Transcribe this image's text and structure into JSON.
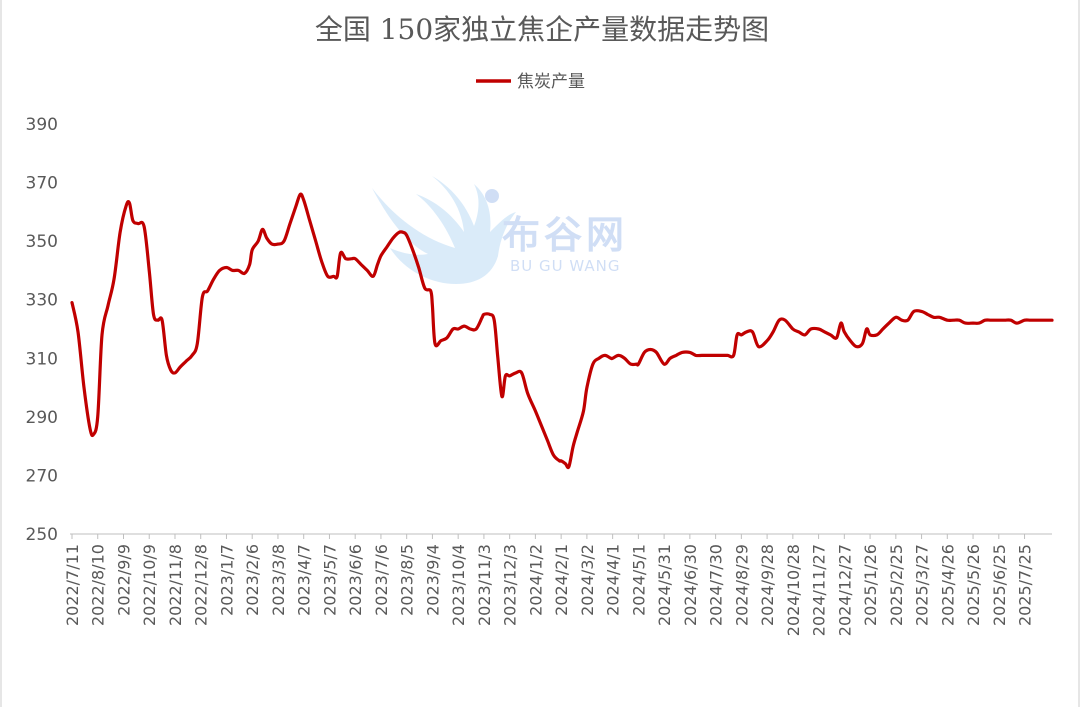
{
  "watermark": {
    "brand_cn": "布谷网",
    "brand_en": "BU GU WANG"
  },
  "chart_data": {
    "type": "line",
    "title": "全国 150家独立焦企产量数据走势图",
    "legend": {
      "position": "top-center"
    },
    "xlabel": "",
    "ylabel": "",
    "ylim": [
      250,
      390
    ],
    "yticks": [
      "250",
      "270",
      "290",
      "310",
      "330",
      "350",
      "370",
      "390"
    ],
    "grid": false,
    "xticks": [
      "2022/7/11",
      "2022/8/10",
      "2022/9/9",
      "2022/10/9",
      "2022/11/8",
      "2022/12/8",
      "2023/1/7",
      "2023/2/6",
      "2023/3/8",
      "2023/4/7",
      "2023/5/7",
      "2023/6/6",
      "2023/7/6",
      "2023/8/5",
      "2023/9/4",
      "2023/10/4",
      "2023/11/3",
      "2023/12/3",
      "2024/1/2",
      "2024/2/1",
      "2024/3/2",
      "2024/4/1",
      "2024/5/1",
      "2024/5/31",
      "2024/6/30",
      "2024/7/30",
      "2024/8/29",
      "2024/9/28",
      "2024/10/28",
      "2024/11/27",
      "2024/12/27",
      "2025/1/26",
      "2025/2/25",
      "2025/3/27",
      "2025/4/26",
      "2025/5/26",
      "2025/6/25",
      "2025/7/25"
    ],
    "x_end": "2025/8/26",
    "color": "#c00000",
    "series": [
      {
        "name": "焦炭产量",
        "points": [
          [
            "2022/7/11",
            329
          ],
          [
            "2022/7/18",
            319
          ],
          [
            "2022/7/25",
            300
          ],
          [
            "2022/8/1",
            286
          ],
          [
            "2022/8/5",
            284
          ],
          [
            "2022/8/10",
            290
          ],
          [
            "2022/8/15",
            318
          ],
          [
            "2022/8/22",
            328
          ],
          [
            "2022/8/29",
            337
          ],
          [
            "2022/9/5",
            353
          ],
          [
            "2022/9/12",
            362
          ],
          [
            "2022/9/16",
            363
          ],
          [
            "2022/9/20",
            357
          ],
          [
            "2022/9/26",
            356
          ],
          [
            "2022/10/3",
            355
          ],
          [
            "2022/10/9",
            340
          ],
          [
            "2022/10/14",
            325
          ],
          [
            "2022/10/19",
            323
          ],
          [
            "2022/10/24",
            323
          ],
          [
            "2022/10/29",
            311
          ],
          [
            "2022/11/3",
            306
          ],
          [
            "2022/11/8",
            305
          ],
          [
            "2022/11/14",
            307
          ],
          [
            "2022/11/21",
            309
          ],
          [
            "2022/11/28",
            311
          ],
          [
            "2022/12/4",
            315
          ],
          [
            "2022/12/10",
            331
          ],
          [
            "2022/12/16",
            333
          ],
          [
            "2022/12/23",
            337
          ],
          [
            "2022/12/30",
            340
          ],
          [
            "2023/1/7",
            341
          ],
          [
            "2023/1/14",
            340
          ],
          [
            "2023/1/21",
            340
          ],
          [
            "2023/1/28",
            339
          ],
          [
            "2023/2/3",
            342
          ],
          [
            "2023/2/6",
            347
          ],
          [
            "2023/2/13",
            350
          ],
          [
            "2023/2/18",
            354
          ],
          [
            "2023/2/23",
            351
          ],
          [
            "2023/3/1",
            349
          ],
          [
            "2023/3/8",
            349
          ],
          [
            "2023/3/15",
            350
          ],
          [
            "2023/3/22",
            356
          ],
          [
            "2023/3/29",
            362
          ],
          [
            "2023/4/3",
            366
          ],
          [
            "2023/4/7",
            364
          ],
          [
            "2023/4/14",
            357
          ],
          [
            "2023/4/21",
            350
          ],
          [
            "2023/4/28",
            343
          ],
          [
            "2023/5/5",
            338
          ],
          [
            "2023/5/12",
            338
          ],
          [
            "2023/5/16",
            338
          ],
          [
            "2023/5/20",
            346
          ],
          [
            "2023/5/26",
            344
          ],
          [
            "2023/6/2",
            344
          ],
          [
            "2023/6/6",
            344
          ],
          [
            "2023/6/13",
            342
          ],
          [
            "2023/6/20",
            340
          ],
          [
            "2023/6/27",
            338
          ],
          [
            "2023/7/2",
            342
          ],
          [
            "2023/7/6",
            345
          ],
          [
            "2023/7/13",
            348
          ],
          [
            "2023/7/20",
            351
          ],
          [
            "2023/7/27",
            353
          ],
          [
            "2023/8/1",
            353
          ],
          [
            "2023/8/5",
            352
          ],
          [
            "2023/8/12",
            347
          ],
          [
            "2023/8/19",
            341
          ],
          [
            "2023/8/26",
            334
          ],
          [
            "2023/9/2",
            333
          ],
          [
            "2023/9/4",
            328
          ],
          [
            "2023/9/7",
            315
          ],
          [
            "2023/9/14",
            316
          ],
          [
            "2023/9/21",
            317
          ],
          [
            "2023/9/28",
            320
          ],
          [
            "2023/10/4",
            320
          ],
          [
            "2023/10/11",
            321
          ],
          [
            "2023/10/18",
            320
          ],
          [
            "2023/10/25",
            320
          ],
          [
            "2023/11/1",
            324
          ],
          [
            "2023/11/3",
            325
          ],
          [
            "2023/11/10",
            325
          ],
          [
            "2023/11/15",
            323
          ],
          [
            "2023/11/19",
            311
          ],
          [
            "2023/11/24",
            297
          ],
          [
            "2023/11/28",
            304
          ],
          [
            "2023/12/3",
            304
          ],
          [
            "2023/12/10",
            305
          ],
          [
            "2023/12/17",
            305
          ],
          [
            "2023/12/24",
            298
          ],
          [
            "2024/1/2",
            292
          ],
          [
            "2024/1/9",
            287
          ],
          [
            "2024/1/16",
            282
          ],
          [
            "2024/1/23",
            277
          ],
          [
            "2024/1/30",
            275
          ],
          [
            "2024/2/1",
            275
          ],
          [
            "2024/2/6",
            274
          ],
          [
            "2024/2/10",
            273
          ],
          [
            "2024/2/15",
            280
          ],
          [
            "2024/2/20",
            285
          ],
          [
            "2024/2/27",
            292
          ],
          [
            "2024/3/2",
            300
          ],
          [
            "2024/3/9",
            308
          ],
          [
            "2024/3/16",
            310
          ],
          [
            "2024/3/23",
            311
          ],
          [
            "2024/3/30",
            310
          ],
          [
            "2024/4/1",
            310
          ],
          [
            "2024/4/8",
            311
          ],
          [
            "2024/4/15",
            310
          ],
          [
            "2024/4/22",
            308
          ],
          [
            "2024/4/29",
            308
          ],
          [
            "2024/5/1",
            308
          ],
          [
            "2024/5/8",
            312
          ],
          [
            "2024/5/15",
            313
          ],
          [
            "2024/5/22",
            312
          ],
          [
            "2024/5/31",
            308
          ],
          [
            "2024/6/7",
            310
          ],
          [
            "2024/6/14",
            311
          ],
          [
            "2024/6/21",
            312
          ],
          [
            "2024/6/30",
            312
          ],
          [
            "2024/7/7",
            311
          ],
          [
            "2024/7/14",
            311
          ],
          [
            "2024/7/21",
            311
          ],
          [
            "2024/7/30",
            311
          ],
          [
            "2024/8/6",
            311
          ],
          [
            "2024/8/13",
            311
          ],
          [
            "2024/8/20",
            311
          ],
          [
            "2024/8/24",
            318
          ],
          [
            "2024/8/29",
            318
          ],
          [
            "2024/9/4",
            319
          ],
          [
            "2024/9/11",
            319
          ],
          [
            "2024/9/18",
            314
          ],
          [
            "2024/9/28",
            316
          ],
          [
            "2024/10/5",
            319
          ],
          [
            "2024/10/12",
            323
          ],
          [
            "2024/10/19",
            323
          ],
          [
            "2024/10/28",
            320
          ],
          [
            "2024/11/4",
            319
          ],
          [
            "2024/11/11",
            318
          ],
          [
            "2024/11/18",
            320
          ],
          [
            "2024/11/27",
            320
          ],
          [
            "2024/12/4",
            319
          ],
          [
            "2024/12/11",
            318
          ],
          [
            "2024/12/18",
            317
          ],
          [
            "2024/12/23",
            322
          ],
          [
            "2024/12/27",
            319
          ],
          [
            "2025/1/3",
            316
          ],
          [
            "2025/1/10",
            314
          ],
          [
            "2025/1/17",
            315
          ],
          [
            "2025/1/22",
            320
          ],
          [
            "2025/1/26",
            318
          ],
          [
            "2025/2/3",
            318
          ],
          [
            "2025/2/10",
            320
          ],
          [
            "2025/2/17",
            322
          ],
          [
            "2025/2/25",
            324
          ],
          [
            "2025/3/4",
            323
          ],
          [
            "2025/3/11",
            323
          ],
          [
            "2025/3/18",
            326
          ],
          [
            "2025/3/27",
            326
          ],
          [
            "2025/4/3",
            325
          ],
          [
            "2025/4/10",
            324
          ],
          [
            "2025/4/17",
            324
          ],
          [
            "2025/4/26",
            323
          ],
          [
            "2025/5/3",
            323
          ],
          [
            "2025/5/10",
            323
          ],
          [
            "2025/5/17",
            322
          ],
          [
            "2025/5/26",
            322
          ],
          [
            "2025/6/2",
            322
          ],
          [
            "2025/6/9",
            323
          ],
          [
            "2025/6/16",
            323
          ],
          [
            "2025/6/25",
            323
          ],
          [
            "2025/7/2",
            323
          ],
          [
            "2025/7/9",
            323
          ],
          [
            "2025/7/16",
            322
          ],
          [
            "2025/7/25",
            323
          ],
          [
            "2025/8/1",
            323
          ],
          [
            "2025/8/11",
            323
          ],
          [
            "2025/8/26",
            323
          ]
        ]
      }
    ]
  }
}
